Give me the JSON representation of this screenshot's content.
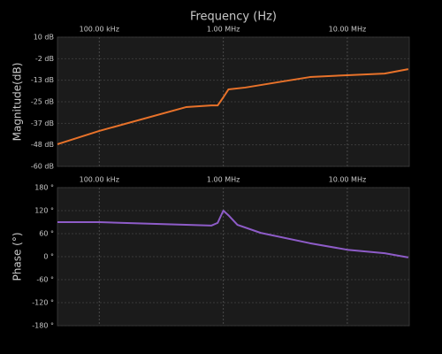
{
  "chart_data": [
    {
      "type": "line",
      "title": "Frequency (Hz)",
      "y_label": "Magnitude(dB)",
      "xscale": "log",
      "grid": true,
      "x": [
        46000,
        100000,
        500000,
        800000,
        900000,
        1000000,
        1100000,
        1500000,
        3000000,
        5000000,
        10000000,
        20000000,
        31000000
      ],
      "series": [
        {
          "name": "Magnitude",
          "color": "#e8722a",
          "values": [
            -48,
            -40.8,
            -27.9,
            -27,
            -27,
            -22.6,
            -18.3,
            -17.3,
            -14,
            -11.6,
            -10.6,
            -9.7,
            -7.3
          ]
        }
      ],
      "xlim": [
        46000,
        31600000
      ],
      "xticks": [
        {
          "value": 100000,
          "label": "100.00 kHz"
        },
        {
          "value": 1000000,
          "label": "1.00 MHz"
        },
        {
          "value": 10000000,
          "label": "10.00 MHz"
        }
      ],
      "ylim": [
        -60,
        10
      ],
      "yticks": [
        {
          "value": 10,
          "label": "10 dB"
        },
        {
          "value": -1.67,
          "label": "-2 dB"
        },
        {
          "value": -13.33,
          "label": "-13 dB"
        },
        {
          "value": -25,
          "label": "-25 dB"
        },
        {
          "value": -36.67,
          "label": "-37 dB"
        },
        {
          "value": -48.33,
          "label": "-48 dB"
        },
        {
          "value": -60,
          "label": "-60 dB"
        }
      ]
    },
    {
      "type": "line",
      "y_label": "Phase (°)",
      "xscale": "log",
      "grid": true,
      "x": [
        46000,
        100000,
        500000,
        800000,
        900000,
        1000000,
        1100000,
        1300000,
        2000000,
        5000000,
        10000000,
        20000000,
        31000000
      ],
      "series": [
        {
          "name": "Phase",
          "color": "#8e5cc8",
          "values": [
            90,
            90,
            83,
            81,
            88,
            120,
            108,
            83,
            62,
            35,
            18,
            9,
            -2
          ]
        }
      ],
      "xlim": [
        46000,
        31600000
      ],
      "xticks": [
        {
          "value": 100000,
          "label": "100.00 kHz"
        },
        {
          "value": 1000000,
          "label": "1.00 MHz"
        },
        {
          "value": 10000000,
          "label": "10.00 MHz"
        }
      ],
      "ylim": [
        -180,
        180
      ],
      "yticks": [
        {
          "value": 180,
          "label": "180 °"
        },
        {
          "value": 120,
          "label": "120 °"
        },
        {
          "value": 60,
          "label": "60 °"
        },
        {
          "value": 0,
          "label": "0 °"
        },
        {
          "value": -60,
          "label": "-60 °"
        },
        {
          "value": -120,
          "label": "-120 °"
        },
        {
          "value": -180,
          "label": "-180 °"
        }
      ]
    }
  ]
}
